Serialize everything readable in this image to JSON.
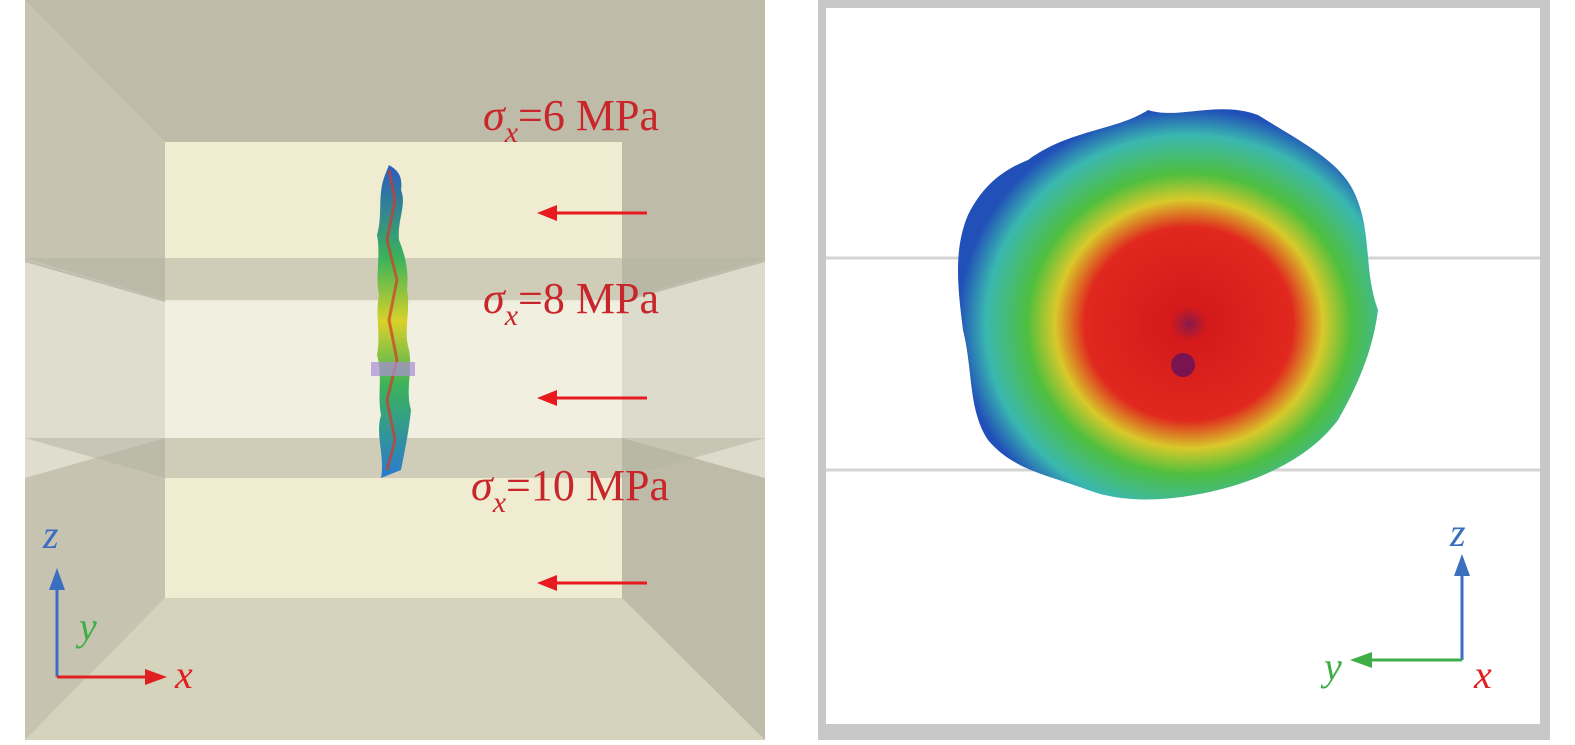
{
  "left_panel": {
    "stress_labels": [
      {
        "symbol": "σ",
        "subscript": "x",
        "value": "=6 MPa"
      },
      {
        "symbol": "σ",
        "subscript": "x",
        "value": "=8 MPa"
      },
      {
        "symbol": "σ",
        "subscript": "x",
        "value": "=10 MPa"
      }
    ],
    "axes": {
      "z": "z",
      "y": "y",
      "x": "x"
    }
  },
  "right_panel": {
    "axes": {
      "z": "z",
      "y": "y",
      "x": "x"
    }
  },
  "colors": {
    "stress_text": "#c8262a",
    "arrow": "#e8191f",
    "axis_z": "#3a6fbf",
    "axis_y": "#3fae49",
    "axis_x": "#e02020",
    "box_wall": "#c7c5b1",
    "box_floor": "#ebe8cf"
  },
  "icons": [
    "arrow-left-icon",
    "axis-triad-icon"
  ]
}
